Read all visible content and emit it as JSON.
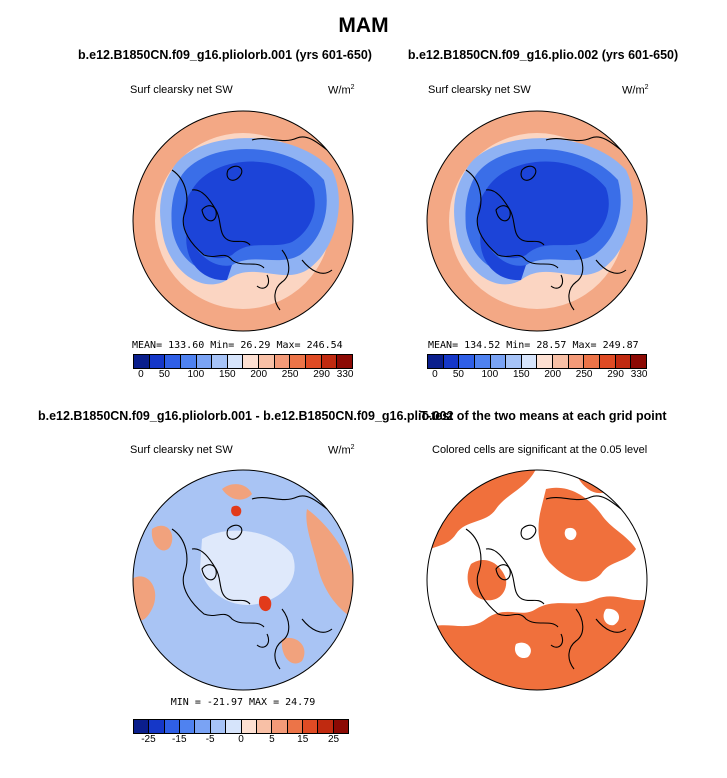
{
  "season_title": "MAM",
  "panels": {
    "top_left": {
      "title": "b.e12.B1850CN.f09_g16.pliolorb.001 (yrs 601-650)",
      "variable": "Surf clearsky net SW",
      "units_base": "W/m",
      "units_exp": "2",
      "stats": {
        "mean": "MEAN= 133.60",
        "min": "Min=  26.29",
        "max": "Max= 246.54"
      }
    },
    "top_right": {
      "title": "b.e12.B1850CN.f09_g16.plio.002 (yrs 601-650)",
      "variable": "Surf clearsky net SW",
      "units_base": "W/m",
      "units_exp": "2",
      "stats": {
        "mean": "MEAN= 134.52",
        "min": "Min=  28.57",
        "max": "Max= 249.87"
      }
    },
    "bottom_left": {
      "title": "b.e12.B1850CN.f09_g16.pliolorb.001 - b.e12.B1850CN.f09_g16.plio.002",
      "variable": "Surf clearsky net SW",
      "units_base": "W/m",
      "units_exp": "2",
      "stats": {
        "minmax": "MIN = -21.97 MAX =  24.79"
      }
    },
    "bottom_right": {
      "title": "T-test of the two means at each grid point",
      "subtitle": "Colored cells are significant at the 0.05 level"
    }
  },
  "colorbars": {
    "absolute": {
      "colors": [
        "#0a1e8c",
        "#1537c8",
        "#2f5fe6",
        "#4f82f0",
        "#7aa3f4",
        "#a6c3f7",
        "#d6e4fb",
        "#fde0d2",
        "#f8c0a6",
        "#f39a78",
        "#ec7448",
        "#df4b24",
        "#c02a10",
        "#8c0a04"
      ],
      "ticks": [
        "0",
        "50",
        "100",
        "150",
        "200",
        "250",
        "290",
        "330"
      ]
    },
    "difference": {
      "colors": [
        "#0a1e8c",
        "#1537c8",
        "#2f5fe6",
        "#4f82f0",
        "#7aa3f4",
        "#a6c3f7",
        "#d6e4fb",
        "#fde0d2",
        "#f8c0a6",
        "#f39a78",
        "#ec7448",
        "#df4b24",
        "#c02a10",
        "#8c0a04"
      ],
      "ticks": [
        "-25",
        "-15",
        "-5",
        "0",
        "5",
        "15",
        "25"
      ]
    }
  },
  "map_colors": {
    "outer_ring": "#f3a885",
    "mid_ring": "#fbd5c2",
    "deep_blue": "#1c44d8",
    "mid_blue": "#3a6ee8",
    "light_blue": "#8fb2f3",
    "diff_base": "#a9c4f4",
    "diff_light": "#dfe9fb",
    "diff_warm": "#f1a27d",
    "diff_hot": "#e23a1a",
    "ttest_fill": "#f0703c"
  }
}
